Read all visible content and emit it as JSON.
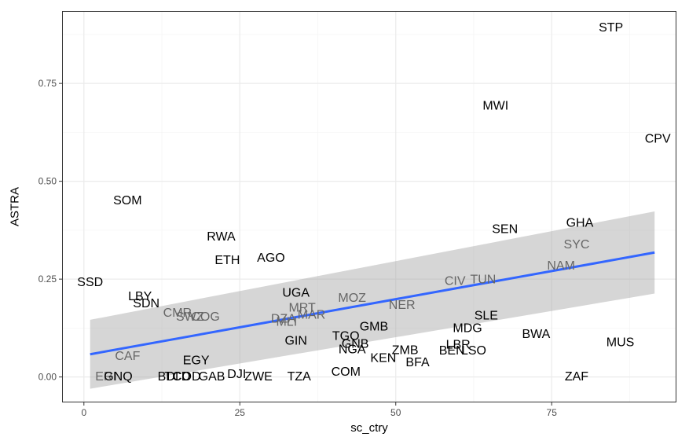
{
  "chart_data": {
    "type": "scatter",
    "title": "",
    "xlabel": "sc_ctry",
    "ylabel": "ASTRA",
    "xlim": [
      -3.5,
      95
    ],
    "ylim": [
      -0.065,
      0.935
    ],
    "x_ticks": [
      0,
      25,
      50,
      75
    ],
    "y_ticks": [
      0.0,
      0.25,
      0.5,
      0.75
    ],
    "x_tick_labels": [
      "0",
      "25",
      "50",
      "75"
    ],
    "y_tick_labels": [
      "0.00",
      "0.25",
      "0.50",
      "0.75"
    ],
    "grid": true,
    "colors": {
      "panel_border": "#333333",
      "grid_major": "#ebebeb",
      "grid_minor": "#f5f5f5",
      "fit_line": "#3366ff",
      "confidence_band": "#999999",
      "label_dark": "#000000",
      "label_grey": "#666666"
    },
    "points": [
      {
        "label": "STP",
        "x": 84.5,
        "y": 0.892,
        "tone": "dark"
      },
      {
        "label": "MWI",
        "x": 66.0,
        "y": 0.692,
        "tone": "dark"
      },
      {
        "label": "CPV",
        "x": 92.0,
        "y": 0.608,
        "tone": "dark"
      },
      {
        "label": "SOM",
        "x": 7.0,
        "y": 0.45,
        "tone": "dark"
      },
      {
        "label": "GHA",
        "x": 79.5,
        "y": 0.393,
        "tone": "dark"
      },
      {
        "label": "SEN",
        "x": 67.5,
        "y": 0.377,
        "tone": "dark"
      },
      {
        "label": "RWA",
        "x": 22.0,
        "y": 0.358,
        "tone": "dark"
      },
      {
        "label": "SYC",
        "x": 79.0,
        "y": 0.338,
        "tone": "grey"
      },
      {
        "label": "AGO",
        "x": 30.0,
        "y": 0.303,
        "tone": "dark"
      },
      {
        "label": "ETH",
        "x": 23.0,
        "y": 0.297,
        "tone": "dark"
      },
      {
        "label": "NAM",
        "x": 76.5,
        "y": 0.283,
        "tone": "grey"
      },
      {
        "label": "CIV",
        "x": 59.5,
        "y": 0.244,
        "tone": "grey"
      },
      {
        "label": "TUN",
        "x": 64.0,
        "y": 0.248,
        "tone": "grey"
      },
      {
        "label": "SSD",
        "x": 1.0,
        "y": 0.241,
        "tone": "dark"
      },
      {
        "label": "UGA",
        "x": 34.0,
        "y": 0.214,
        "tone": "dark"
      },
      {
        "label": "LBY",
        "x": 9.0,
        "y": 0.205,
        "tone": "dark"
      },
      {
        "label": "SDN",
        "x": 10.0,
        "y": 0.187,
        "tone": "dark"
      },
      {
        "label": "MOZ",
        "x": 43.0,
        "y": 0.201,
        "tone": "grey"
      },
      {
        "label": "NER",
        "x": 51.0,
        "y": 0.183,
        "tone": "grey"
      },
      {
        "label": "MRT",
        "x": 35.0,
        "y": 0.176,
        "tone": "grey"
      },
      {
        "label": "CMR",
        "x": 15.0,
        "y": 0.163,
        "tone": "grey"
      },
      {
        "label": "SWZ",
        "x": 17.0,
        "y": 0.153,
        "tone": "grey"
      },
      {
        "label": "COG",
        "x": 19.5,
        "y": 0.153,
        "tone": "grey"
      },
      {
        "label": "MAR",
        "x": 36.5,
        "y": 0.158,
        "tone": "grey"
      },
      {
        "label": "DZA",
        "x": 32.0,
        "y": 0.148,
        "tone": "grey"
      },
      {
        "label": "MLI",
        "x": 32.5,
        "y": 0.14,
        "tone": "grey"
      },
      {
        "label": "SLE",
        "x": 64.5,
        "y": 0.156,
        "tone": "dark"
      },
      {
        "label": "GMB",
        "x": 46.5,
        "y": 0.128,
        "tone": "dark"
      },
      {
        "label": "MDG",
        "x": 61.5,
        "y": 0.124,
        "tone": "dark"
      },
      {
        "label": "BWA",
        "x": 72.5,
        "y": 0.109,
        "tone": "dark"
      },
      {
        "label": "TGO",
        "x": 42.0,
        "y": 0.104,
        "tone": "dark"
      },
      {
        "label": "GIN",
        "x": 34.0,
        "y": 0.092,
        "tone": "dark"
      },
      {
        "label": "MUS",
        "x": 86.0,
        "y": 0.088,
        "tone": "dark"
      },
      {
        "label": "GNB",
        "x": 43.5,
        "y": 0.084,
        "tone": "dark"
      },
      {
        "label": "LBR",
        "x": 60.0,
        "y": 0.082,
        "tone": "dark"
      },
      {
        "label": "NGA",
        "x": 43.0,
        "y": 0.07,
        "tone": "dark"
      },
      {
        "label": "ZMB",
        "x": 51.5,
        "y": 0.068,
        "tone": "dark"
      },
      {
        "label": "BEN",
        "x": 59.0,
        "y": 0.067,
        "tone": "dark"
      },
      {
        "label": "LSO",
        "x": 62.5,
        "y": 0.067,
        "tone": "dark"
      },
      {
        "label": "KEN",
        "x": 48.0,
        "y": 0.047,
        "tone": "dark"
      },
      {
        "label": "BFA",
        "x": 53.5,
        "y": 0.036,
        "tone": "dark"
      },
      {
        "label": "CAF",
        "x": 7.0,
        "y": 0.052,
        "tone": "grey"
      },
      {
        "label": "EGY",
        "x": 18.0,
        "y": 0.041,
        "tone": "dark"
      },
      {
        "label": "COM",
        "x": 42.0,
        "y": 0.012,
        "tone": "dark"
      },
      {
        "label": "DJI",
        "x": 24.5,
        "y": 0.006,
        "tone": "dark"
      },
      {
        "label": "ERI",
        "x": 3.5,
        "y": 0.0,
        "tone": "grey"
      },
      {
        "label": "GNQ",
        "x": 5.5,
        "y": 0.0,
        "tone": "dark"
      },
      {
        "label": "BDI",
        "x": 13.5,
        "y": 0.0,
        "tone": "dark"
      },
      {
        "label": "TCD",
        "x": 15.0,
        "y": 0.0,
        "tone": "dark"
      },
      {
        "label": "COD",
        "x": 16.5,
        "y": 0.0,
        "tone": "dark"
      },
      {
        "label": "GAB",
        "x": 20.5,
        "y": 0.0,
        "tone": "dark"
      },
      {
        "label": "ZWE",
        "x": 28.0,
        "y": 0.0,
        "tone": "dark"
      },
      {
        "label": "TZA",
        "x": 34.5,
        "y": 0.0,
        "tone": "dark"
      },
      {
        "label": "ZAF",
        "x": 79.0,
        "y": 0.0,
        "tone": "dark"
      }
    ],
    "fit": {
      "x": [
        1.0,
        91.5
      ],
      "y": [
        0.058,
        0.318
      ],
      "ci_lower": [
        -0.03,
        0.213
      ],
      "ci_upper": [
        0.146,
        0.423
      ]
    }
  }
}
